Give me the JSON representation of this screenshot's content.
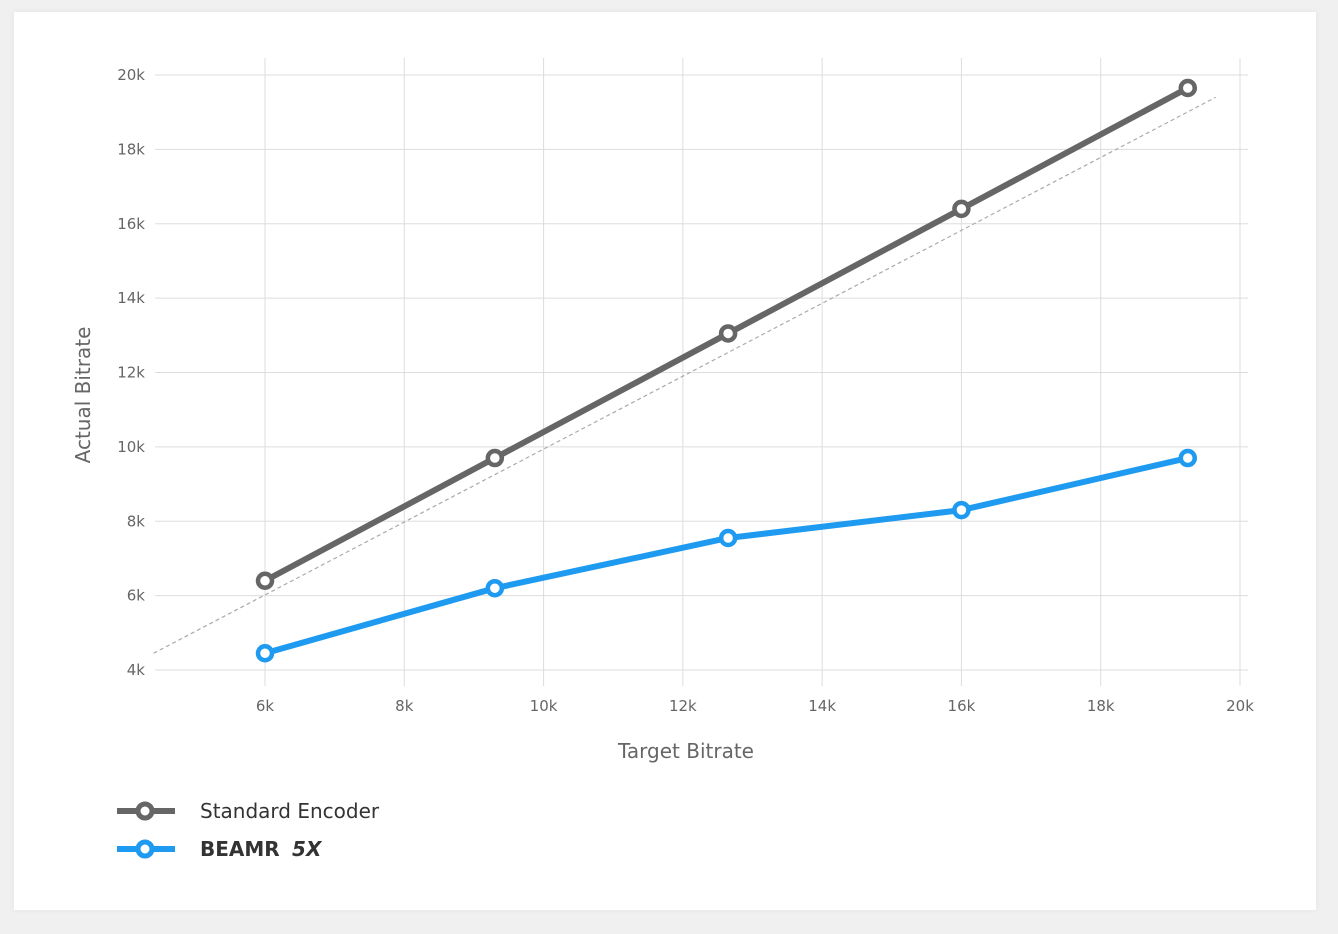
{
  "chart_data": {
    "type": "line",
    "xlabel": "Target Bitrate",
    "ylabel": "Actual Bitrate",
    "xlim": [
      4400,
      20000
    ],
    "ylim": [
      4000,
      20000
    ],
    "x_ticks": [
      6000,
      8000,
      10000,
      12000,
      14000,
      16000,
      18000,
      20000
    ],
    "x_tick_labels": [
      "6k",
      "8k",
      "10k",
      "12k",
      "14k",
      "16k",
      "18k",
      "20k"
    ],
    "y_ticks": [
      4000,
      6000,
      8000,
      10000,
      12000,
      14000,
      16000,
      18000,
      20000
    ],
    "y_tick_labels": [
      "4k",
      "6k",
      "8k",
      "10k",
      "12k",
      "14k",
      "16k",
      "18k",
      "20k"
    ],
    "grid": true,
    "legend_position": "bottom-left",
    "reference_line": {
      "style": "dashed",
      "color": "#aaaaaa",
      "x": [
        4400,
        19650
      ],
      "y": [
        4450,
        19400
      ]
    },
    "series": [
      {
        "name": "Standard Encoder",
        "color": "#666666",
        "x": [
          6000,
          9300,
          12650,
          16000,
          19250
        ],
        "y": [
          6400,
          9700,
          13050,
          16400,
          19650
        ]
      },
      {
        "name_part1": "BEAMR",
        "name_part2": "5X",
        "color": "#1e9bf0",
        "x": [
          6000,
          9300,
          12650,
          16000,
          19250
        ],
        "y": [
          4450,
          6200,
          7550,
          8300,
          9700
        ]
      }
    ]
  }
}
